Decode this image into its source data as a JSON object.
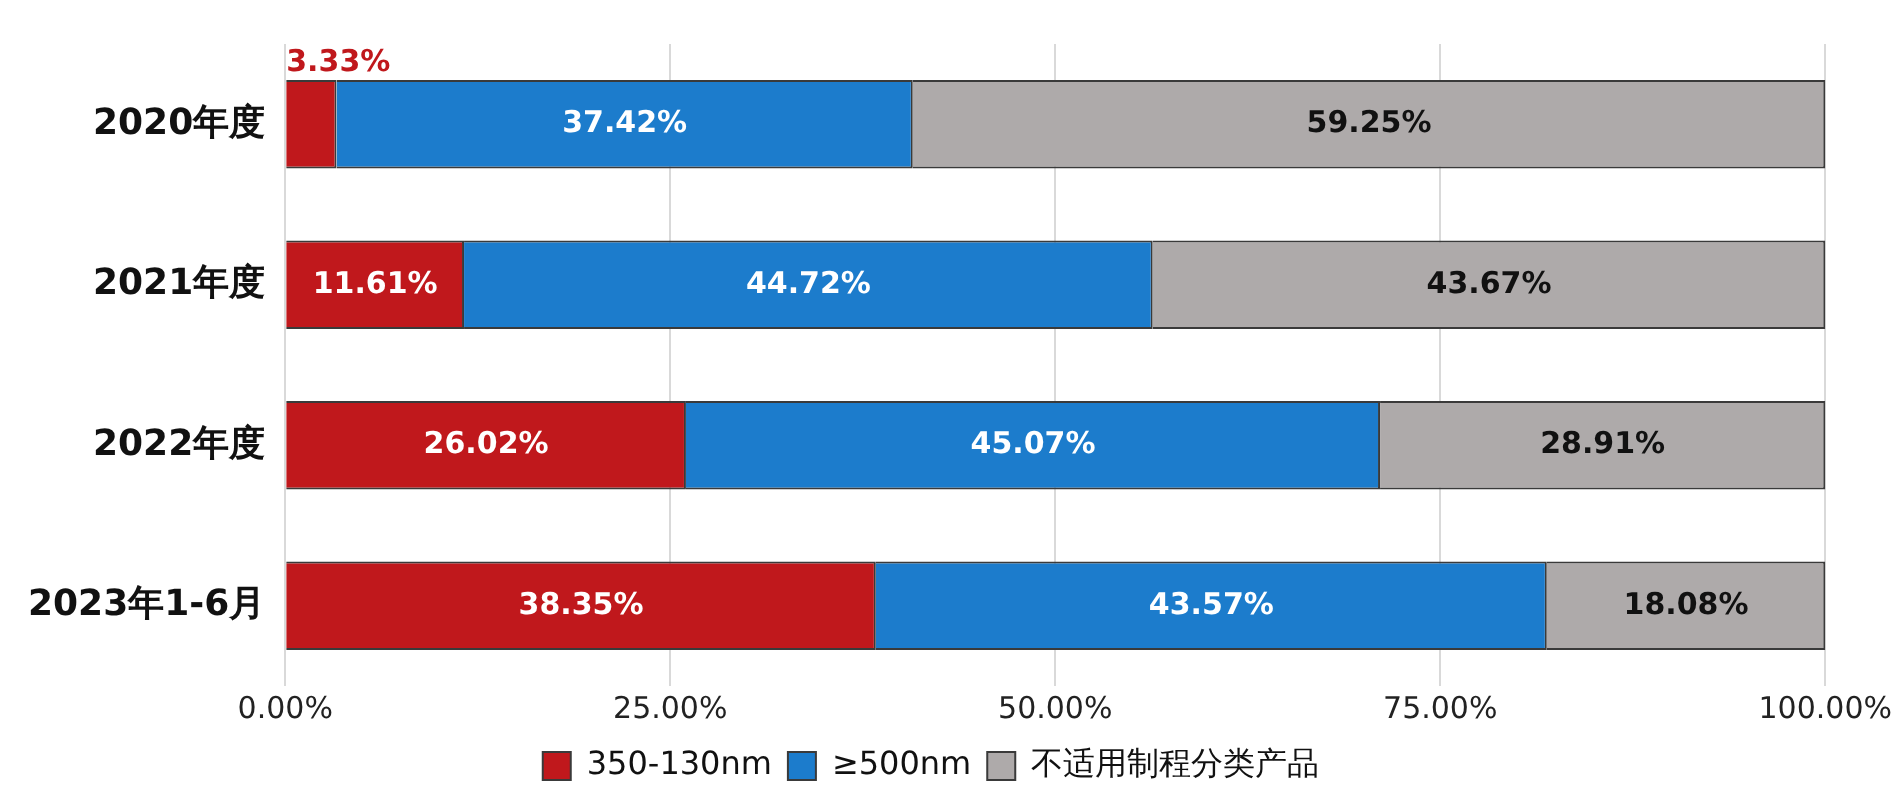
{
  "chart_data": {
    "type": "bar",
    "orientation": "horizontal",
    "stacked": true,
    "categories": [
      "2020年度",
      "2021年度",
      "2022年度",
      "2023年1-6月"
    ],
    "series": [
      {
        "name": "350-130nm",
        "color": "#c0181c",
        "values": [
          3.33,
          11.61,
          26.02,
          38.35
        ],
        "value_labels": [
          "3.33%",
          "11.61%",
          "26.02%",
          "38.35%"
        ]
      },
      {
        "name": "≥500nm",
        "color": "#1c7ccc",
        "values": [
          37.42,
          44.72,
          45.07,
          43.57
        ],
        "value_labels": [
          "37.42%",
          "44.72%",
          "45.07%",
          "43.57%"
        ]
      },
      {
        "name": "不适用制程分类产品",
        "color": "#aeaaaa",
        "values": [
          59.25,
          43.67,
          28.91,
          18.08
        ],
        "value_labels": [
          "59.25%",
          "43.67%",
          "28.91%",
          "18.08%"
        ]
      }
    ],
    "xlim": [
      0,
      100
    ],
    "xticks": [
      {
        "value": 0,
        "label": "0.00%"
      },
      {
        "value": 25,
        "label": "25.00%"
      },
      {
        "value": 50,
        "label": "50.00%"
      },
      {
        "value": 75,
        "label": "75.00%"
      },
      {
        "value": 100,
        "label": "100.00%"
      }
    ],
    "grid": "x",
    "legend": "bottom"
  }
}
